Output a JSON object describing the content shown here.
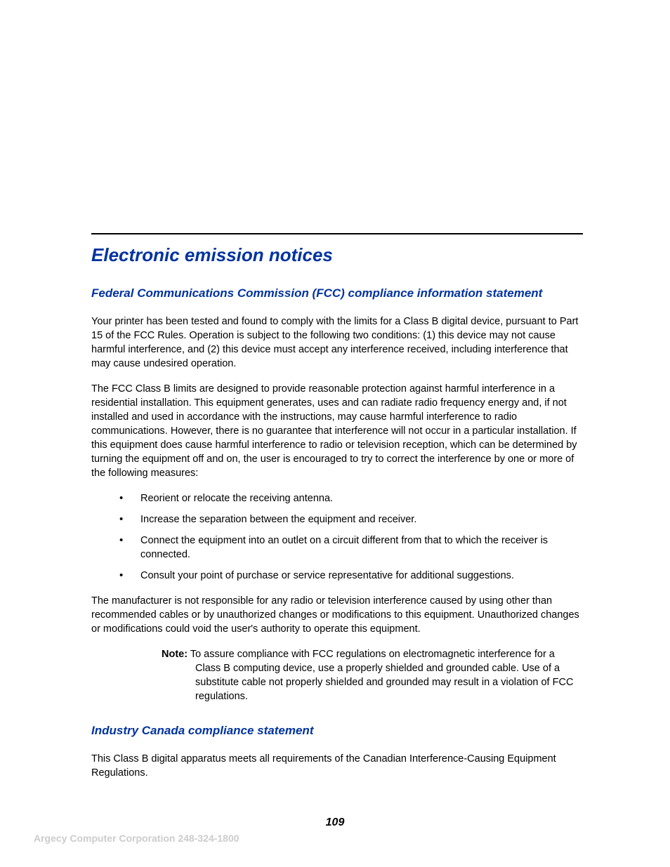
{
  "colors": {
    "heading": "#0033a0",
    "body": "#000000",
    "footer": "#cccccc",
    "background": "#ffffff",
    "rule": "#000000"
  },
  "typography": {
    "h1_size_pt": 20,
    "h2_size_pt": 13,
    "body_size_pt": 11,
    "footer_size_pt": 10.5,
    "heading_style": "bold italic"
  },
  "heading_main": "Electronic emission notices",
  "section_fcc": {
    "heading": "Federal Communications Commission (FCC) compliance information statement",
    "para1": "Your printer has been tested and found to comply with the limits for a Class B digital device, pursuant to Part 15 of the FCC Rules. Operation is subject to the following two conditions: (1) this device may not cause harmful interference, and (2) this device must accept any interference received, including interference that may cause undesired operation.",
    "para2": "The FCC Class B limits are designed to provide reasonable protection against harmful interference in a residential installation. This equipment generates, uses and can radiate radio frequency energy and, if not installed and used in accordance with the instructions, may cause harmful interference to radio communications. However, there is no guarantee that interference will not occur in a particular installation. If this equipment does cause harmful interference to radio or television reception, which can be determined by turning the equipment off and on, the user is encouraged to try to correct the interference by one or more of the following measures:",
    "bullets": [
      "Reorient or relocate the receiving antenna.",
      "Increase the separation between the equipment and receiver.",
      "Connect the equipment into an outlet on a circuit different from that to which the receiver is connected.",
      "Consult your point of purchase or service representative for additional suggestions."
    ],
    "para3": "The manufacturer is not responsible for any radio or television interference caused by using other than recommended cables or by unauthorized changes or modifications to this equipment. Unauthorized changes or modifications could void the user's authority to operate this equipment.",
    "note_label": "Note:",
    "note_text": "To assure compliance with FCC regulations on electromagnetic interference for a Class B computing device, use a properly shielded and grounded cable. Use of a substitute cable not properly shielded and grounded may result in a violation of FCC regulations."
  },
  "section_ic": {
    "heading": "Industry Canada compliance statement",
    "para1": "This Class B digital apparatus meets all requirements of the Canadian Interference-Causing Equipment Regulations."
  },
  "page_number": "109",
  "footer": "Argecy Computer Corporation 248-324-1800"
}
